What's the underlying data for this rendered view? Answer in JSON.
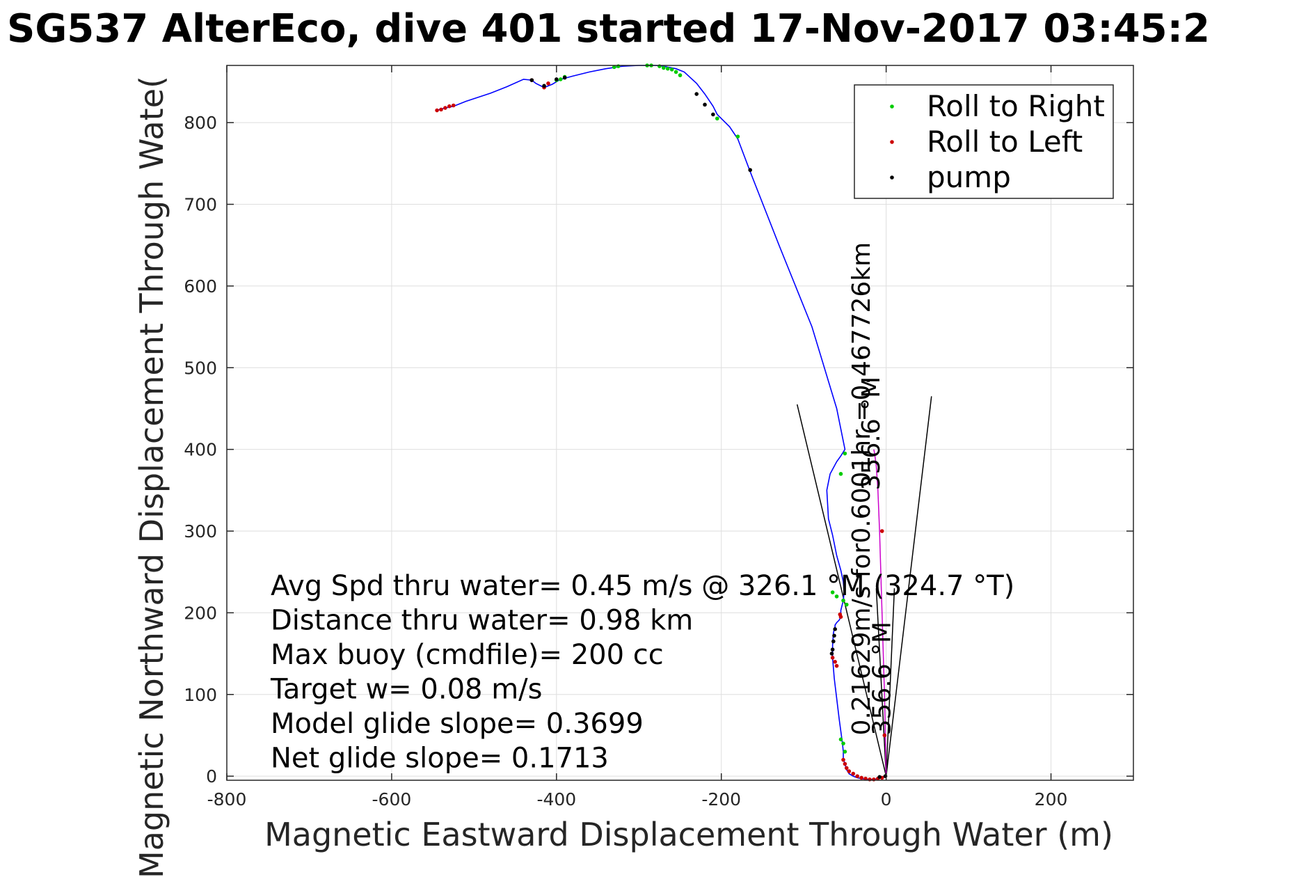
{
  "chart_data": {
    "type": "line",
    "title": "SG537 AlterEco, dive 401 started 17-Nov-2017 03:45:2",
    "xlabel": "Magnetic Eastward Displacement Through Water (m)",
    "ylabel": "Magnetic Northward Displacement Through Wate(",
    "xlim": [
      -800,
      300
    ],
    "ylim": [
      -5,
      870
    ],
    "grid": true,
    "xticks": [
      -800,
      -600,
      -400,
      -200,
      0,
      200
    ],
    "yticks": [
      0,
      100,
      200,
      300,
      400,
      500,
      600,
      700,
      800
    ],
    "xtick_labels": [
      "-800",
      "-600",
      "-400",
      "-200",
      "0",
      "200"
    ],
    "ytick_labels": [
      "0",
      "100",
      "200",
      "300",
      "400",
      "500",
      "600",
      "700",
      "800"
    ],
    "legend_position": "top-right",
    "legend": [
      {
        "label": "Roll to Right",
        "color": "#00cc00"
      },
      {
        "label": "Roll to Left",
        "color": "#cc0000"
      },
      {
        "label": "pump",
        "color": "#000000"
      }
    ],
    "track": {
      "color": "#0000ff",
      "x": [
        0,
        -5,
        -10,
        -15,
        -20,
        -25,
        -30,
        -35,
        -40,
        -45,
        -48,
        -50,
        -52,
        -52,
        -53,
        -55,
        -57,
        -60,
        -63,
        -65,
        -65,
        -64,
        -63,
        -62,
        -62,
        -60,
        -57,
        -55,
        -55,
        -52,
        -51,
        -52,
        -55,
        -60,
        -65,
        -70,
        -72,
        -70,
        -68,
        -60,
        -55,
        -50,
        -60,
        -90,
        -130,
        -165,
        -180,
        -190,
        -200,
        -205,
        -210,
        -220,
        -230,
        -245,
        -255,
        -265,
        -270,
        -280,
        -290,
        -300,
        -320,
        -340,
        -360,
        -380,
        -395,
        -400,
        -405,
        -415,
        -425,
        -430,
        -440,
        -460,
        -480,
        -510,
        -525,
        -535,
        -545
      ],
      "y": [
        0,
        -1,
        -3,
        -4,
        -4,
        -4,
        -3,
        -2,
        0,
        3,
        8,
        15,
        22,
        30,
        40,
        55,
        70,
        95,
        120,
        145,
        160,
        175,
        180,
        183,
        185,
        188,
        191,
        195,
        203,
        215,
        225,
        238,
        252,
        270,
        295,
        315,
        350,
        360,
        370,
        385,
        392,
        400,
        450,
        550,
        650,
        740,
        780,
        795,
        805,
        810,
        820,
        835,
        848,
        862,
        866,
        868,
        869,
        870,
        870,
        870,
        869,
        866,
        862,
        857,
        853,
        850,
        847,
        843,
        848,
        852,
        853,
        844,
        836,
        826,
        820,
        818,
        815
      ]
    },
    "series": [
      {
        "name": "Roll to Right",
        "color": "#00cc00",
        "x": [
          -50,
          -52,
          -55,
          -60,
          -65,
          -330,
          -325,
          -290,
          -285,
          -275,
          -270,
          -265,
          -260,
          -255,
          -250,
          -400,
          -395,
          -390,
          -205,
          -180,
          -55,
          -50,
          -48,
          -52
        ],
        "y": [
          30,
          40,
          45,
          220,
          225,
          868,
          869,
          870,
          870,
          869,
          867,
          866,
          865,
          862,
          858,
          852,
          853,
          856,
          805,
          783,
          370,
          395,
          210,
          215
        ]
      },
      {
        "name": "Roll to Left",
        "color": "#cc0000",
        "x": [
          -52,
          -50,
          -48,
          -45,
          -40,
          -35,
          -30,
          -25,
          -20,
          -15,
          -10,
          -5,
          -60,
          -62,
          -65,
          -55,
          -56,
          -545,
          -540,
          -535,
          -530,
          -525,
          -410,
          -415,
          -430,
          -2,
          -5
        ],
        "y": [
          20,
          15,
          10,
          6,
          3,
          0,
          -2,
          -3,
          -4,
          -4,
          -3,
          -2,
          135,
          140,
          145,
          195,
          198,
          815,
          816,
          818,
          820,
          821,
          848,
          843,
          852,
          50,
          300
        ]
      },
      {
        "name": "pump",
        "color": "#000000",
        "x": [
          -65,
          -64,
          -63,
          -62,
          -66,
          -230,
          -220,
          -210,
          -165,
          -430,
          -415,
          -400,
          -390,
          -1,
          -8
        ],
        "y": [
          155,
          165,
          172,
          180,
          150,
          835,
          822,
          810,
          742,
          852,
          845,
          853,
          855,
          0,
          -1
        ]
      }
    ],
    "magenta_path": {
      "color": "#cc00cc",
      "x": [
        0,
        -2,
        -5,
        -8,
        -10,
        -12,
        -14,
        -15
      ],
      "y": [
        0,
        100,
        200,
        300,
        350,
        380,
        395,
        400
      ]
    },
    "cone": {
      "color": "#000000",
      "left": {
        "x": [
          0,
          -108
        ],
        "y": [
          0,
          455
        ]
      },
      "right": {
        "x": [
          0,
          55
        ],
        "y": [
          0,
          465
        ]
      },
      "center_left": {
        "x": [
          0,
          -12
        ],
        "y": [
          0,
          230
        ]
      },
      "center_right": {
        "x": [
          0,
          10
        ],
        "y": [
          0,
          230
        ]
      }
    },
    "stats": [
      "Avg Spd thru water=  0.45 m/s @ 326.1 °M (324.7 °T)",
      "Distance thru water=  0.98 km",
      "Max buoy (cmdfile)= 200 cc",
      "Target w= 0.08 m/s",
      "Model glide slope= 0.3699",
      "Net glide slope= 0.1713"
    ],
    "annotations": [
      {
        "text": "0.21629m/s for0.6001hr =0.467726km",
        "x": -20,
        "y": 50
      },
      {
        "text": "356.6 °M",
        "x": 5,
        "y": 50
      },
      {
        "text": "356.6 °M",
        "x": -8,
        "y": 350
      }
    ]
  }
}
